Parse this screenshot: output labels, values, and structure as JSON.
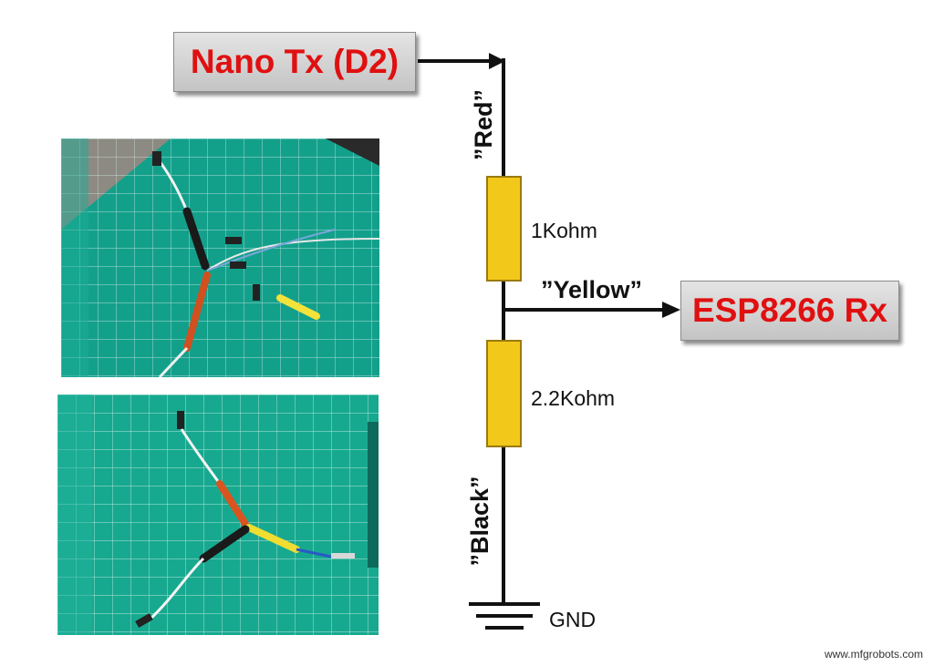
{
  "source": {
    "label": "Nano Tx (D2)"
  },
  "target": {
    "label": "ESP8266 Rx"
  },
  "resistors": [
    {
      "value": "1Kohm"
    },
    {
      "value": "2.2Kohm"
    }
  ],
  "wires": {
    "red": "”Red”",
    "yellow": "”Yellow”",
    "black": "”Black”"
  },
  "ground": {
    "label": "GND"
  },
  "footer": "www.mfgrobots.com",
  "colors": {
    "label_text": "#e01010",
    "resistor_fill": "#f2c81a",
    "wire": "#111111",
    "mat": "#159a86"
  }
}
